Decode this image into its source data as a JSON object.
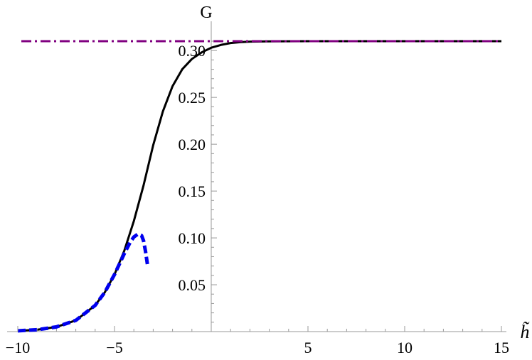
{
  "chart_data": {
    "type": "line",
    "xlabel": "h̃",
    "ylabel": "G",
    "xlim": [
      -10,
      15
    ],
    "ylim": [
      0,
      0.31
    ],
    "grid": false,
    "x_ticks": [
      -10,
      -5,
      5,
      10,
      15
    ],
    "x_tick_labels": [
      "−10",
      "−5",
      "5",
      "10",
      "15"
    ],
    "y_ticks": [
      0.05,
      0.1,
      0.15,
      0.2,
      0.25,
      0.3
    ],
    "y_tick_labels": [
      "0.05",
      "0.10",
      "0.15",
      "0.20",
      "0.25",
      "0.30"
    ],
    "series": [
      {
        "style": "solid",
        "color": "#000000",
        "x": [
          -10,
          -9,
          -8,
          -7,
          -6,
          -5.5,
          -5,
          -4.5,
          -4,
          -3.5,
          -3,
          -2.5,
          -2,
          -1.5,
          -1,
          -0.5,
          0,
          0.5,
          1,
          1.5,
          2,
          3,
          4,
          5,
          7,
          10,
          15
        ],
        "y": [
          0.0008,
          0.002,
          0.005,
          0.012,
          0.028,
          0.042,
          0.061,
          0.086,
          0.118,
          0.156,
          0.199,
          0.235,
          0.262,
          0.28,
          0.291,
          0.298,
          0.303,
          0.306,
          0.308,
          0.309,
          0.3095,
          0.3098,
          0.3099,
          0.31,
          0.31,
          0.31,
          0.31
        ]
      },
      {
        "style": "dashed",
        "color": "#0000ee",
        "x": [
          -10,
          -9,
          -8,
          -7,
          -6,
          -5.5,
          -5,
          -4.5,
          -4.2,
          -4,
          -3.8,
          -3.6,
          -3.5,
          -3.4,
          -3.3
        ],
        "y": [
          0.0008,
          0.002,
          0.005,
          0.012,
          0.028,
          0.042,
          0.061,
          0.083,
          0.095,
          0.101,
          0.104,
          0.1025,
          0.097,
          0.086,
          0.072
        ]
      },
      {
        "style": "dash-dot",
        "color": "#800080",
        "x": [
          -10,
          15
        ],
        "y": [
          0.31,
          0.31
        ]
      }
    ]
  }
}
